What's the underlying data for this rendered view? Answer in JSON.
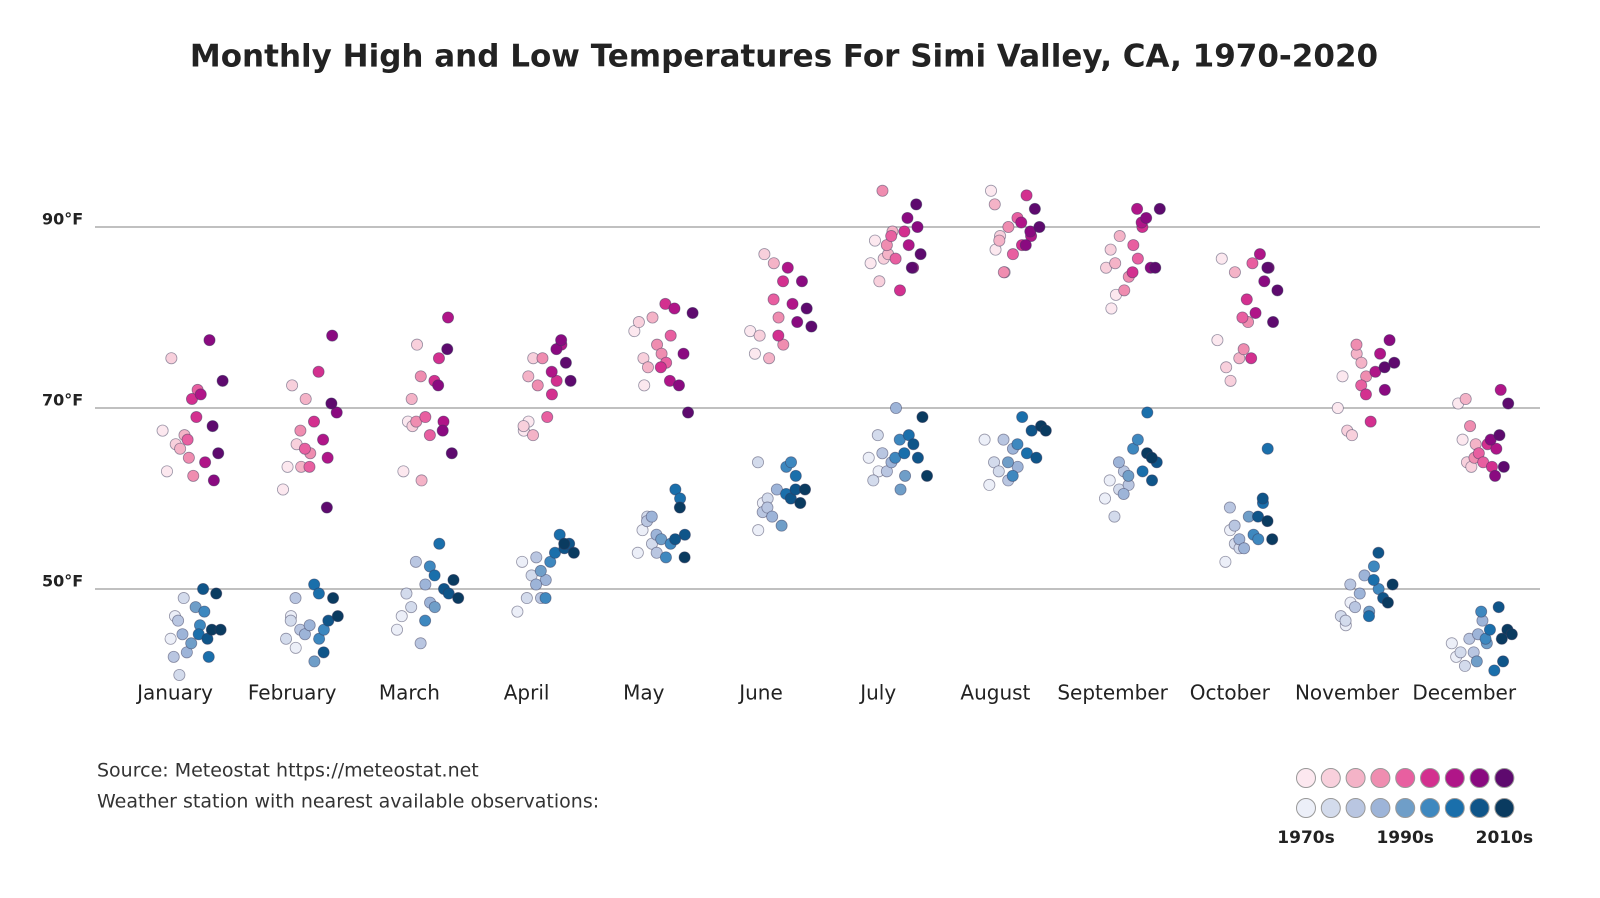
{
  "chart_data": {
    "type": "scatter",
    "title": "Monthly High and Low Temperatures For Simi Valley, CA, 1970-2020",
    "categories": [
      "January",
      "February",
      "March",
      "April",
      "May",
      "June",
      "July",
      "August",
      "September",
      "October",
      "November",
      "December"
    ],
    "ylim": [
      40,
      100
    ],
    "yticks": [
      {
        "value": 50,
        "label": "50°F"
      },
      {
        "value": 70,
        "label": "70°F"
      },
      {
        "value": 90,
        "label": "90°F"
      }
    ],
    "grid": true,
    "series": [
      {
        "colors": [
          "#fce8ef",
          "#f8d0dc",
          "#f4b3c7",
          "#ef8db0",
          "#e85fa0",
          "#d3308f",
          "#b01588",
          "#8a0a80",
          "#5e0a6e"
        ],
        "values": [
          [
            67.5,
            63,
            75.5,
            66,
            65.5,
            67,
            64.5,
            62.5,
            72,
            66.5,
            71,
            69,
            71.5,
            64,
            77.5,
            62,
            65,
            73,
            68
          ],
          [
            61,
            63.5,
            72.5,
            66,
            63.5,
            71,
            65,
            67.5,
            65.5,
            63.5,
            68.5,
            74,
            66.5,
            64.5,
            78,
            69.5,
            59,
            70.5
          ],
          [
            63,
            68.5,
            68,
            77,
            62,
            71,
            68.5,
            73.5,
            69,
            67,
            73,
            75.5,
            68.5,
            80,
            72.5,
            67.5,
            76.5,
            65
          ],
          [
            67.5,
            68.5,
            75.5,
            68,
            73.5,
            67,
            72.5,
            75.5,
            69,
            71.5,
            73,
            77,
            74,
            76.5,
            77.5,
            75,
            73
          ],
          [
            72.5,
            78.5,
            79.5,
            75.5,
            74.5,
            80,
            77,
            76,
            75,
            78,
            74.5,
            81.5,
            73,
            81,
            72.5,
            76,
            69.5,
            80.5
          ],
          [
            78.5,
            76,
            78,
            87,
            75.5,
            86,
            80,
            77,
            82,
            78,
            84,
            85.5,
            81.5,
            79.5,
            84,
            81,
            79
          ],
          [
            86,
            88.5,
            84,
            86.5,
            87,
            89.5,
            94,
            88,
            89,
            86.5,
            83,
            89.5,
            88,
            85.5,
            90,
            91,
            85.5,
            92.5,
            87
          ],
          [
            94,
            87.5,
            89,
            85,
            92.5,
            88.5,
            85,
            90,
            87,
            91,
            88,
            93.5,
            89,
            90.5,
            88,
            89.5,
            92,
            90
          ],
          [
            81,
            82.5,
            85.5,
            87.5,
            86,
            89,
            83,
            84.5,
            88,
            86.5,
            90,
            85,
            92,
            90.5,
            91,
            85.5,
            85.5,
            92
          ],
          [
            77.5,
            86.5,
            74.5,
            73,
            85,
            75.5,
            76.5,
            79.5,
            86,
            80,
            82,
            75.5,
            80.5,
            87,
            84,
            85.5,
            79.5,
            83,
            85.5
          ],
          [
            70,
            73.5,
            67.5,
            67,
            76,
            75,
            73.5,
            77,
            72.5,
            71.5,
            68.5,
            74,
            76,
            72,
            77.5,
            75,
            74.5
          ],
          [
            70.5,
            66.5,
            64,
            63.5,
            66,
            71,
            68,
            64.5,
            65,
            64,
            66,
            63.5,
            65.5,
            72,
            66.5,
            62.5,
            67,
            63.5,
            70.5
          ]
        ]
      },
      {
        "colors": [
          "#eceff8",
          "#d3dbec",
          "#b9c6e1",
          "#9db4d8",
          "#6f9ec8",
          "#3e88bf",
          "#1a6fab",
          "#0f5589",
          "#0a3b60"
        ],
        "values": [
          [
            44.5,
            47,
            40.5,
            49,
            42.5,
            46.5,
            45,
            43,
            44,
            48,
            46,
            47.5,
            42.5,
            45,
            50,
            44.5,
            45.5,
            49.5,
            45.5
          ],
          [
            47,
            43.5,
            44.5,
            46.5,
            49,
            45.5,
            45,
            46,
            42,
            44.5,
            45.5,
            50.5,
            49.5,
            43,
            46.5,
            49,
            47
          ],
          [
            45.5,
            47,
            49.5,
            48,
            53,
            44,
            50.5,
            48.5,
            48,
            46.5,
            52.5,
            51.5,
            55,
            50,
            49.5,
            51,
            49
          ],
          [
            47.5,
            53,
            49,
            51.5,
            53.5,
            49,
            51,
            50.5,
            52,
            49,
            53,
            54,
            56,
            54.5,
            55,
            54,
            55
          ],
          [
            54,
            56.5,
            58,
            55,
            54,
            57.5,
            58,
            56,
            55.5,
            53.5,
            55,
            61,
            60,
            56,
            55.5,
            59,
            53.5
          ],
          [
            56.5,
            59.5,
            60,
            64,
            58.5,
            59,
            58,
            61,
            57,
            63.5,
            64,
            62.5,
            60.5,
            60,
            61,
            59.5,
            61
          ],
          [
            63,
            64.5,
            62,
            67,
            65,
            63,
            64,
            70,
            61,
            62.5,
            64.5,
            66.5,
            65,
            67,
            66,
            64.5,
            69,
            62.5
          ],
          [
            66.5,
            61.5,
            64,
            63,
            66.5,
            62,
            65.5,
            63.5,
            64,
            62.5,
            66,
            69,
            65,
            67.5,
            64.5,
            68,
            67.5
          ],
          [
            60,
            62,
            58,
            61,
            63,
            61.5,
            64,
            60.5,
            62.5,
            65.5,
            66.5,
            63,
            69.5,
            62,
            64,
            65,
            64.5
          ],
          [
            53,
            56.5,
            55,
            54.5,
            59,
            57,
            55.5,
            54.5,
            58,
            56,
            55.5,
            59.5,
            65.5,
            58,
            60,
            57.5,
            55.5
          ],
          [
            46,
            48.5,
            47,
            46.5,
            50.5,
            48,
            49.5,
            51.5,
            47.5,
            52.5,
            50,
            47,
            51,
            54,
            49,
            48.5,
            50.5
          ],
          [
            44,
            42.5,
            43,
            41.5,
            44.5,
            43,
            45,
            46.5,
            44,
            42,
            47.5,
            44.5,
            45.5,
            41,
            48,
            42,
            45.5,
            45,
            44.5
          ]
        ]
      }
    ],
    "legend": {
      "labels": [
        "1970s",
        "1990s",
        "2010s"
      ]
    },
    "notes": [
      "Source: Meteostat https://meteostat.net",
      "Weather station with nearest available observations:"
    ]
  }
}
